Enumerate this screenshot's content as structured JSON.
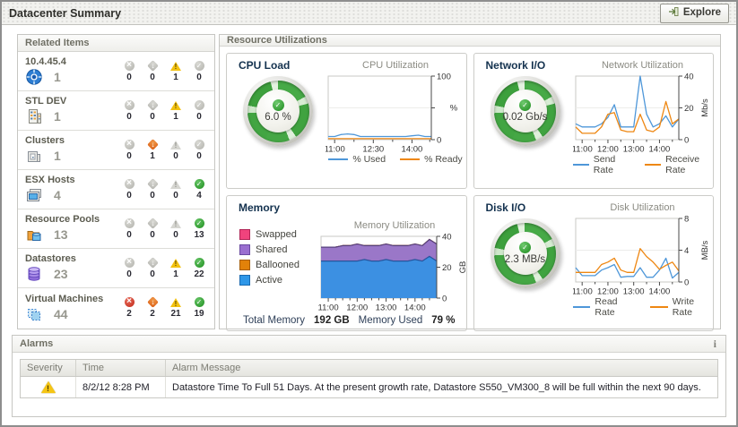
{
  "window": {
    "title": "Datacenter Summary",
    "explore_label": "Explore"
  },
  "related_items": {
    "title": "Related Items",
    "rows": [
      {
        "label": "10.4.45.4",
        "icon": "vcenter",
        "count": "1",
        "statuses": [
          {
            "kind": "fatal",
            "count": "0",
            "state": "off"
          },
          {
            "kind": "critical",
            "count": "0",
            "state": "off"
          },
          {
            "kind": "warning",
            "count": "1",
            "state": "on"
          },
          {
            "kind": "normal",
            "count": "0",
            "state": "off"
          }
        ]
      },
      {
        "label": "STL DEV",
        "icon": "datacenter",
        "count": "1",
        "statuses": [
          {
            "kind": "fatal",
            "count": "0",
            "state": "off"
          },
          {
            "kind": "critical",
            "count": "0",
            "state": "off"
          },
          {
            "kind": "warning",
            "count": "1",
            "state": "on"
          },
          {
            "kind": "normal",
            "count": "0",
            "state": "off"
          }
        ]
      },
      {
        "label": "Clusters",
        "icon": "cluster",
        "count": "1",
        "statuses": [
          {
            "kind": "fatal",
            "count": "0",
            "state": "off"
          },
          {
            "kind": "critical",
            "count": "1",
            "state": "on"
          },
          {
            "kind": "warning",
            "count": "0",
            "state": "off"
          },
          {
            "kind": "normal",
            "count": "0",
            "state": "off"
          }
        ]
      },
      {
        "label": "ESX Hosts",
        "icon": "esx-host",
        "count": "4",
        "statuses": [
          {
            "kind": "fatal",
            "count": "0",
            "state": "off"
          },
          {
            "kind": "critical",
            "count": "0",
            "state": "off"
          },
          {
            "kind": "warning",
            "count": "0",
            "state": "off"
          },
          {
            "kind": "normal",
            "count": "4",
            "state": "on"
          }
        ]
      },
      {
        "label": "Resource Pools",
        "icon": "resource-pool",
        "count": "13",
        "statuses": [
          {
            "kind": "fatal",
            "count": "0",
            "state": "off"
          },
          {
            "kind": "critical",
            "count": "0",
            "state": "off"
          },
          {
            "kind": "warning",
            "count": "0",
            "state": "off"
          },
          {
            "kind": "normal",
            "count": "13",
            "state": "on"
          }
        ]
      },
      {
        "label": "Datastores",
        "icon": "datastore",
        "count": "23",
        "statuses": [
          {
            "kind": "fatal",
            "count": "0",
            "state": "off"
          },
          {
            "kind": "critical",
            "count": "0",
            "state": "off"
          },
          {
            "kind": "warning",
            "count": "1",
            "state": "on"
          },
          {
            "kind": "normal",
            "count": "22",
            "state": "on"
          }
        ]
      },
      {
        "label": "Virtual Machines",
        "icon": "virtual-machine",
        "count": "44",
        "statuses": [
          {
            "kind": "fatal",
            "count": "2",
            "state": "on"
          },
          {
            "kind": "critical",
            "count": "2",
            "state": "on"
          },
          {
            "kind": "warning",
            "count": "21",
            "state": "on"
          },
          {
            "kind": "normal",
            "count": "19",
            "state": "on"
          }
        ]
      }
    ]
  },
  "resource": {
    "title": "Resource Utilizations",
    "cpu": {
      "title": "CPU Load",
      "gauge_value": "6.0 %",
      "gauge_status": "normal",
      "chart_title": "CPU Utilization"
    },
    "network": {
      "title": "Network I/O",
      "gauge_value": "0.02 Gb/s",
      "gauge_status": "normal",
      "chart_title": "Network Utilization"
    },
    "memory": {
      "title": "Memory",
      "chart_title": "Memory Utilization",
      "total_label": "Total Memory",
      "total_value": "192 GB",
      "used_label": "Memory Used",
      "used_value": "79 %"
    },
    "disk": {
      "title": "Disk I/O",
      "gauge_value": "2.3 MB/s",
      "gauge_status": "normal",
      "chart_title": "Disk Utilization"
    }
  },
  "alarms": {
    "title": "Alarms",
    "info": "i",
    "columns": [
      "Severity",
      "Time",
      "Alarm Message"
    ],
    "rows": [
      {
        "severity": "warning",
        "time": "8/2/12 8:28 PM",
        "message": "Datastore Time To Full 51 Days. At the present growth rate, Datastore S550_VM300_8 will be full within the next 90 days."
      }
    ]
  },
  "colors": {
    "line_blue": "#4e97d9",
    "line_orange": "#ee8712",
    "status_fatal": "#c02415",
    "status_critical": "#d95a10",
    "status_warning": "#f3c211",
    "status_normal": "#1e8e1e",
    "gauge_green": "#42a542"
  },
  "chart_data": [
    {
      "id": "cpu",
      "type": "line",
      "title": "CPU Utilization",
      "unit": "%",
      "unit_rotated": false,
      "ylim": [
        0,
        100
      ],
      "grid": true,
      "legend_position": "bottom",
      "yticks": [
        {
          "v": 0,
          "label": "0"
        },
        {
          "v": 50,
          "label": ""
        },
        {
          "v": 100,
          "label": "100"
        }
      ],
      "xticks": [
        {
          "f": 0.0625,
          "label": "11:00"
        },
        {
          "f": 0.4375,
          "label": "12:30"
        },
        {
          "f": 0.8125,
          "label": "14:00"
        }
      ],
      "xminor": [
        0.25,
        0.625,
        0.985
      ],
      "x_range": [
        "10:45",
        "14:45"
      ],
      "series": [
        {
          "name": "% Used",
          "color": "#4e97d9",
          "values": [
            5,
            5,
            8,
            9,
            8,
            5,
            5,
            5,
            5,
            5,
            5,
            5,
            5,
            6,
            7,
            5,
            5
          ]
        },
        {
          "name": "% Ready",
          "color": "#ee8712",
          "values": [
            1.5,
            1.5,
            1.5,
            1.5,
            1.5,
            1.5,
            1.5,
            1.5,
            1.5,
            1.5,
            1.5,
            1.5,
            1.5,
            1.5,
            1.5,
            1.5,
            1.5
          ]
        }
      ]
    },
    {
      "id": "network",
      "type": "line",
      "title": "Network Utilization",
      "unit": "Mb/s",
      "unit_rotated": true,
      "ylim": [
        0,
        40
      ],
      "grid": true,
      "legend_position": "bottom",
      "yticks": [
        {
          "v": 0,
          "label": "0"
        },
        {
          "v": 20,
          "label": "20"
        },
        {
          "v": 40,
          "label": "40"
        }
      ],
      "xticks": [
        {
          "f": 0.0625,
          "label": "11:00"
        },
        {
          "f": 0.3125,
          "label": "12:00"
        },
        {
          "f": 0.5625,
          "label": "13:00"
        },
        {
          "f": 0.8125,
          "label": "14:00"
        }
      ],
      "xminor": [
        0.1875,
        0.4375,
        0.6875,
        0.9375
      ],
      "x_range": [
        "10:45",
        "14:45"
      ],
      "series": [
        {
          "name": "Send Rate",
          "color": "#4e97d9",
          "values": [
            10,
            8,
            8,
            8,
            10,
            14,
            22,
            8,
            8,
            8,
            40,
            16,
            8,
            10,
            15,
            8,
            13
          ]
        },
        {
          "name": "Receive Rate",
          "color": "#ee8712",
          "values": [
            8,
            4,
            4,
            4,
            8,
            16,
            17,
            6,
            5,
            5,
            16,
            6,
            5,
            8,
            24,
            10,
            13
          ]
        }
      ]
    },
    {
      "id": "memory",
      "type": "stacked-area",
      "title": "Memory Utilization",
      "unit": "GB",
      "unit_rotated": true,
      "ylim": [
        0,
        40
      ],
      "grid": true,
      "legend_position": "left",
      "yticks": [
        {
          "v": 0,
          "label": "0"
        },
        {
          "v": 20,
          "label": "20"
        },
        {
          "v": 40,
          "label": "40"
        }
      ],
      "xticks": [
        {
          "f": 0.0625,
          "label": "11:00"
        },
        {
          "f": 0.3125,
          "label": "12:00"
        },
        {
          "f": 0.5625,
          "label": "13:00"
        },
        {
          "f": 0.8125,
          "label": "14:00"
        }
      ],
      "xminor": [
        0.125,
        0.1875,
        0.25,
        0.375,
        0.4375,
        0.5,
        0.625,
        0.6875,
        0.75,
        0.875,
        0.9375
      ],
      "x_range": [
        "10:45",
        "14:45"
      ],
      "series": [
        {
          "name": "Active",
          "color": "#3c90e2",
          "stroke": "#27549c",
          "values": [
            24,
            24,
            24,
            24,
            24,
            24,
            25,
            24,
            24,
            25,
            24,
            24,
            24,
            25,
            24,
            27,
            24
          ]
        },
        {
          "name": "Shared",
          "color": "#9a77c8",
          "stroke": "#54407c",
          "values": [
            9,
            9,
            9,
            10,
            10,
            11,
            9,
            10,
            10,
            10,
            10,
            10,
            10,
            10,
            10,
            11,
            11
          ]
        },
        {
          "name": "Ballooned",
          "color": "#e2820a",
          "stroke": "#a65e06",
          "values": [
            0,
            0,
            0,
            0,
            0,
            0,
            0,
            0,
            0,
            0,
            0,
            0,
            0,
            0,
            0,
            0,
            0
          ]
        },
        {
          "name": "Swapped",
          "color": "#f0437d",
          "stroke": "#b02355",
          "values": [
            0,
            0,
            0,
            0,
            0,
            0,
            0,
            0,
            0,
            0,
            0,
            0,
            0,
            0,
            0,
            0,
            0
          ]
        }
      ]
    },
    {
      "id": "disk",
      "type": "line",
      "title": "Disk Utilization",
      "unit": "MB/s",
      "unit_rotated": true,
      "ylim": [
        0,
        8
      ],
      "grid": true,
      "legend_position": "bottom",
      "yticks": [
        {
          "v": 0,
          "label": "0"
        },
        {
          "v": 4,
          "label": "4"
        },
        {
          "v": 8,
          "label": "8"
        }
      ],
      "xticks": [
        {
          "f": 0.0625,
          "label": "11:00"
        },
        {
          "f": 0.3125,
          "label": "12:00"
        },
        {
          "f": 0.5625,
          "label": "13:00"
        },
        {
          "f": 0.8125,
          "label": "14:00"
        }
      ],
      "xminor": [
        0.1875,
        0.4375,
        0.6875,
        0.9375
      ],
      "x_range": [
        "10:45",
        "14:45"
      ],
      "series": [
        {
          "name": "Read Rate",
          "color": "#4e97d9",
          "values": [
            1.8,
            0.8,
            0.8,
            0.8,
            1.5,
            1.8,
            2.2,
            0.6,
            0.7,
            0.7,
            1.8,
            0.6,
            0.6,
            1.5,
            3.0,
            0.5,
            1.2
          ]
        },
        {
          "name": "Write Rate",
          "color": "#ee8712",
          "values": [
            1.2,
            1.2,
            1.2,
            1.2,
            2.2,
            2.5,
            3.0,
            1.5,
            1.2,
            1.2,
            4.2,
            3.2,
            2.5,
            1.6,
            2.1,
            2.5,
            1.4
          ]
        }
      ]
    }
  ]
}
